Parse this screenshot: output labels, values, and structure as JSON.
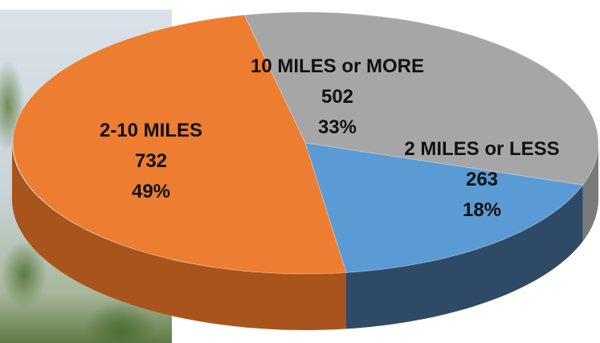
{
  "chart_data": {
    "type": "pie",
    "title": "",
    "slices": [
      {
        "label": "10 MILES or MORE",
        "value": 502,
        "percent": "33%",
        "color": "#a6a6a6",
        "side_color": "#7a7a7a"
      },
      {
        "label": "2 MILES or LESS",
        "value": 263,
        "percent": "18%",
        "color": "#5b9bd5",
        "side_color": "#2e4a66"
      },
      {
        "label": "2-10 MILES",
        "value": 732,
        "percent": "49%",
        "color": "#ed7d31",
        "side_color": "#a9541c"
      }
    ],
    "legend": "none",
    "style": "3d-tilted"
  },
  "background": {
    "photo": "trees-photo"
  }
}
